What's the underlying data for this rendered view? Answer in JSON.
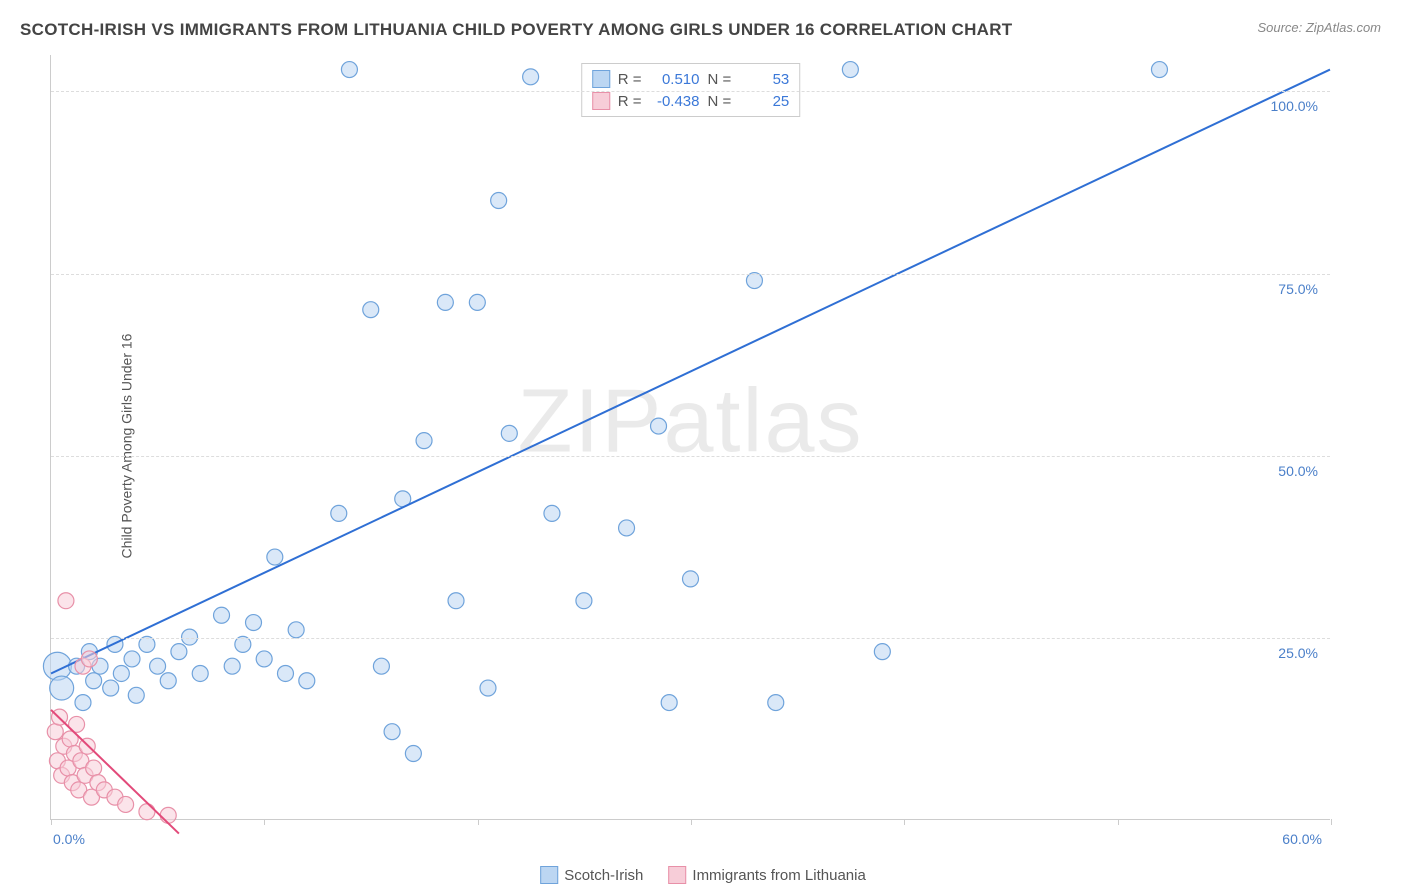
{
  "title": "SCOTCH-IRISH VS IMMIGRANTS FROM LITHUANIA CHILD POVERTY AMONG GIRLS UNDER 16 CORRELATION CHART",
  "source": "Source: ZipAtlas.com",
  "y_axis_label": "Child Poverty Among Girls Under 16",
  "watermark": "ZIPatlas",
  "chart": {
    "type": "scatter",
    "xlim": [
      0,
      60
    ],
    "ylim": [
      0,
      105
    ],
    "x_ticks": [
      0,
      10,
      20,
      30,
      40,
      50,
      60
    ],
    "x_tick_labels": {
      "0": "0.0%",
      "60": "60.0%"
    },
    "y_ticks": [
      25,
      50,
      75,
      100
    ],
    "y_tick_labels": {
      "25": "25.0%",
      "50": "50.0%",
      "75": "75.0%",
      "100": "100.0%"
    },
    "background_color": "#ffffff",
    "grid_color": "#dddddd",
    "axis_color": "#cccccc",
    "tick_label_color": "#4a7fc9",
    "marker_radius": 8,
    "marker_stroke_width": 1.2,
    "trend_line_width": 2
  },
  "series": [
    {
      "name": "Scotch-Irish",
      "fill_color": "#bcd6f2",
      "stroke_color": "#6fa3db",
      "line_color": "#2f6fd4",
      "r_value": "0.510",
      "n_value": "53",
      "trend": {
        "x1": 0,
        "y1": 20,
        "x2": 60,
        "y2": 103
      },
      "points": [
        [
          0.3,
          21,
          14
        ],
        [
          0.5,
          18,
          12
        ],
        [
          1.2,
          21,
          8
        ],
        [
          1.5,
          16,
          8
        ],
        [
          1.8,
          23,
          8
        ],
        [
          2.0,
          19,
          8
        ],
        [
          2.3,
          21,
          8
        ],
        [
          2.8,
          18,
          8
        ],
        [
          3.0,
          24,
          8
        ],
        [
          3.3,
          20,
          8
        ],
        [
          3.8,
          22,
          8
        ],
        [
          4.0,
          17,
          8
        ],
        [
          4.5,
          24,
          8
        ],
        [
          5.0,
          21,
          8
        ],
        [
          5.5,
          19,
          8
        ],
        [
          6.0,
          23,
          8
        ],
        [
          6.5,
          25,
          8
        ],
        [
          7.0,
          20,
          8
        ],
        [
          8.0,
          28,
          8
        ],
        [
          8.5,
          21,
          8
        ],
        [
          9.0,
          24,
          8
        ],
        [
          9.5,
          27,
          8
        ],
        [
          10.0,
          22,
          8
        ],
        [
          10.5,
          36,
          8
        ],
        [
          11.0,
          20,
          8
        ],
        [
          11.5,
          26,
          8
        ],
        [
          12.0,
          19,
          8
        ],
        [
          13.5,
          42,
          8
        ],
        [
          14.0,
          103,
          8
        ],
        [
          15.0,
          70,
          8
        ],
        [
          15.5,
          21,
          8
        ],
        [
          16.0,
          12,
          8
        ],
        [
          16.5,
          44,
          8
        ],
        [
          17.0,
          9,
          8
        ],
        [
          17.5,
          52,
          8
        ],
        [
          18.5,
          71,
          8
        ],
        [
          19.0,
          30,
          8
        ],
        [
          20.0,
          71,
          8
        ],
        [
          20.5,
          18,
          8
        ],
        [
          21.0,
          85,
          8
        ],
        [
          21.5,
          53,
          8
        ],
        [
          22.5,
          102,
          8
        ],
        [
          23.5,
          42,
          8
        ],
        [
          25.0,
          30,
          8
        ],
        [
          27.0,
          40,
          8
        ],
        [
          28.5,
          54,
          8
        ],
        [
          29.0,
          16,
          8
        ],
        [
          30.0,
          33,
          8
        ],
        [
          33.0,
          74,
          8
        ],
        [
          34.0,
          16,
          8
        ],
        [
          37.5,
          103,
          8
        ],
        [
          39.0,
          23,
          8
        ],
        [
          52.0,
          103,
          8
        ]
      ]
    },
    {
      "name": "Immigrants from Lithuania",
      "fill_color": "#f7cdd8",
      "stroke_color": "#e890a8",
      "line_color": "#e24a7a",
      "r_value": "-0.438",
      "n_value": "25",
      "trend": {
        "x1": 0,
        "y1": 15,
        "x2": 6,
        "y2": -2
      },
      "points": [
        [
          0.2,
          12,
          8
        ],
        [
          0.3,
          8,
          8
        ],
        [
          0.4,
          14,
          8
        ],
        [
          0.5,
          6,
          8
        ],
        [
          0.6,
          10,
          8
        ],
        [
          0.7,
          30,
          8
        ],
        [
          0.8,
          7,
          8
        ],
        [
          0.9,
          11,
          8
        ],
        [
          1.0,
          5,
          8
        ],
        [
          1.1,
          9,
          8
        ],
        [
          1.2,
          13,
          8
        ],
        [
          1.3,
          4,
          8
        ],
        [
          1.4,
          8,
          8
        ],
        [
          1.5,
          21,
          8
        ],
        [
          1.6,
          6,
          8
        ],
        [
          1.7,
          10,
          8
        ],
        [
          1.8,
          22,
          8
        ],
        [
          1.9,
          3,
          8
        ],
        [
          2.0,
          7,
          8
        ],
        [
          2.2,
          5,
          8
        ],
        [
          2.5,
          4,
          8
        ],
        [
          3.0,
          3,
          8
        ],
        [
          3.5,
          2,
          8
        ],
        [
          4.5,
          1,
          8
        ],
        [
          5.5,
          0.5,
          8
        ]
      ]
    }
  ],
  "stat_box": {
    "r_label": "R =",
    "n_label": "N ="
  },
  "legend": {
    "series1_label": "Scotch-Irish",
    "series2_label": "Immigrants from Lithuania"
  }
}
